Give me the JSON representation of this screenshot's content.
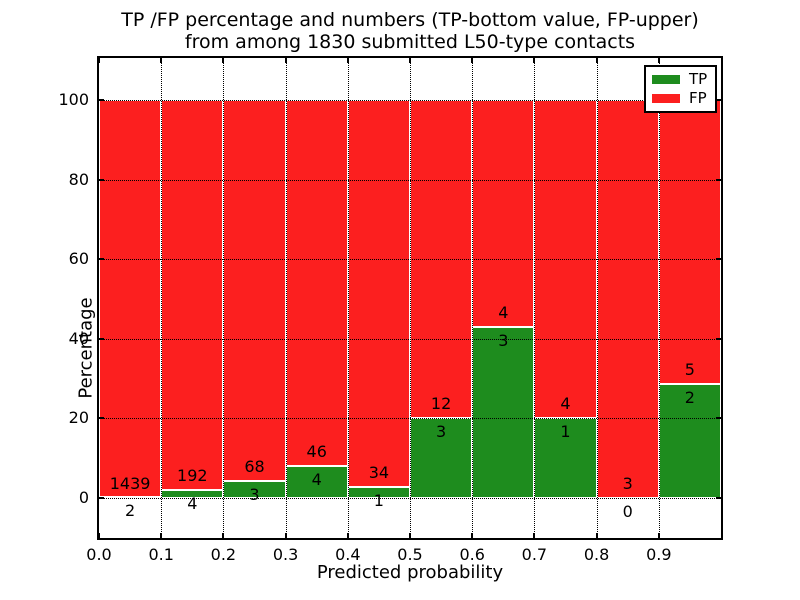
{
  "figure": {
    "title_line1": "TP /FP percentage and numbers (TP-bottom value, FP-upper)",
    "title_line2": "from among 1830 submitted L50-type contacts"
  },
  "chart_data": {
    "type": "bar",
    "stacked": true,
    "normalized": "each bin scaled so TP%+FP% = 100",
    "title": "TP /FP percentage and numbers (TP-bottom value, FP-upper) from among 1830 submitted L50-type contacts",
    "xlabel": "Predicted probability",
    "ylabel": "Percentage",
    "xlim": [
      0.0,
      1.0
    ],
    "ylim": [
      -10,
      110.6
    ],
    "grid": true,
    "categories": [
      "0.0-0.1",
      "0.1-0.2",
      "0.2-0.3",
      "0.3-0.4",
      "0.4-0.5",
      "0.5-0.6",
      "0.6-0.7",
      "0.7-0.8",
      "0.8-0.9",
      "0.9-1.0"
    ],
    "series": [
      {
        "name": "TP",
        "color": "#1e8c1e",
        "counts": [
          2,
          4,
          3,
          4,
          1,
          3,
          3,
          1,
          0,
          2
        ]
      },
      {
        "name": "FP",
        "color": "#fc1f1f",
        "counts": [
          1439,
          192,
          68,
          46,
          34,
          12,
          4,
          4,
          3,
          5
        ]
      }
    ],
    "xticks": [
      {
        "value": 0.0,
        "label": "0.0"
      },
      {
        "value": 0.1,
        "label": "0.1"
      },
      {
        "value": 0.2,
        "label": "0.2"
      },
      {
        "value": 0.3,
        "label": "0.3"
      },
      {
        "value": 0.4,
        "label": "0.4"
      },
      {
        "value": 0.5,
        "label": "0.5"
      },
      {
        "value": 0.6,
        "label": "0.6"
      },
      {
        "value": 0.7,
        "label": "0.7"
      },
      {
        "value": 0.8,
        "label": "0.8"
      },
      {
        "value": 0.9,
        "label": "0.9"
      }
    ],
    "yticks": [
      {
        "value": 0,
        "label": "0"
      },
      {
        "value": 20,
        "label": "20"
      },
      {
        "value": 40,
        "label": "40"
      },
      {
        "value": 60,
        "label": "60"
      },
      {
        "value": 80,
        "label": "80"
      },
      {
        "value": 100,
        "label": "100"
      }
    ],
    "legend": {
      "position": "upper right",
      "entries": [
        {
          "label": "TP",
          "color": "#1e8c1e"
        },
        {
          "label": "FP",
          "color": "#fc1f1f"
        }
      ]
    }
  }
}
